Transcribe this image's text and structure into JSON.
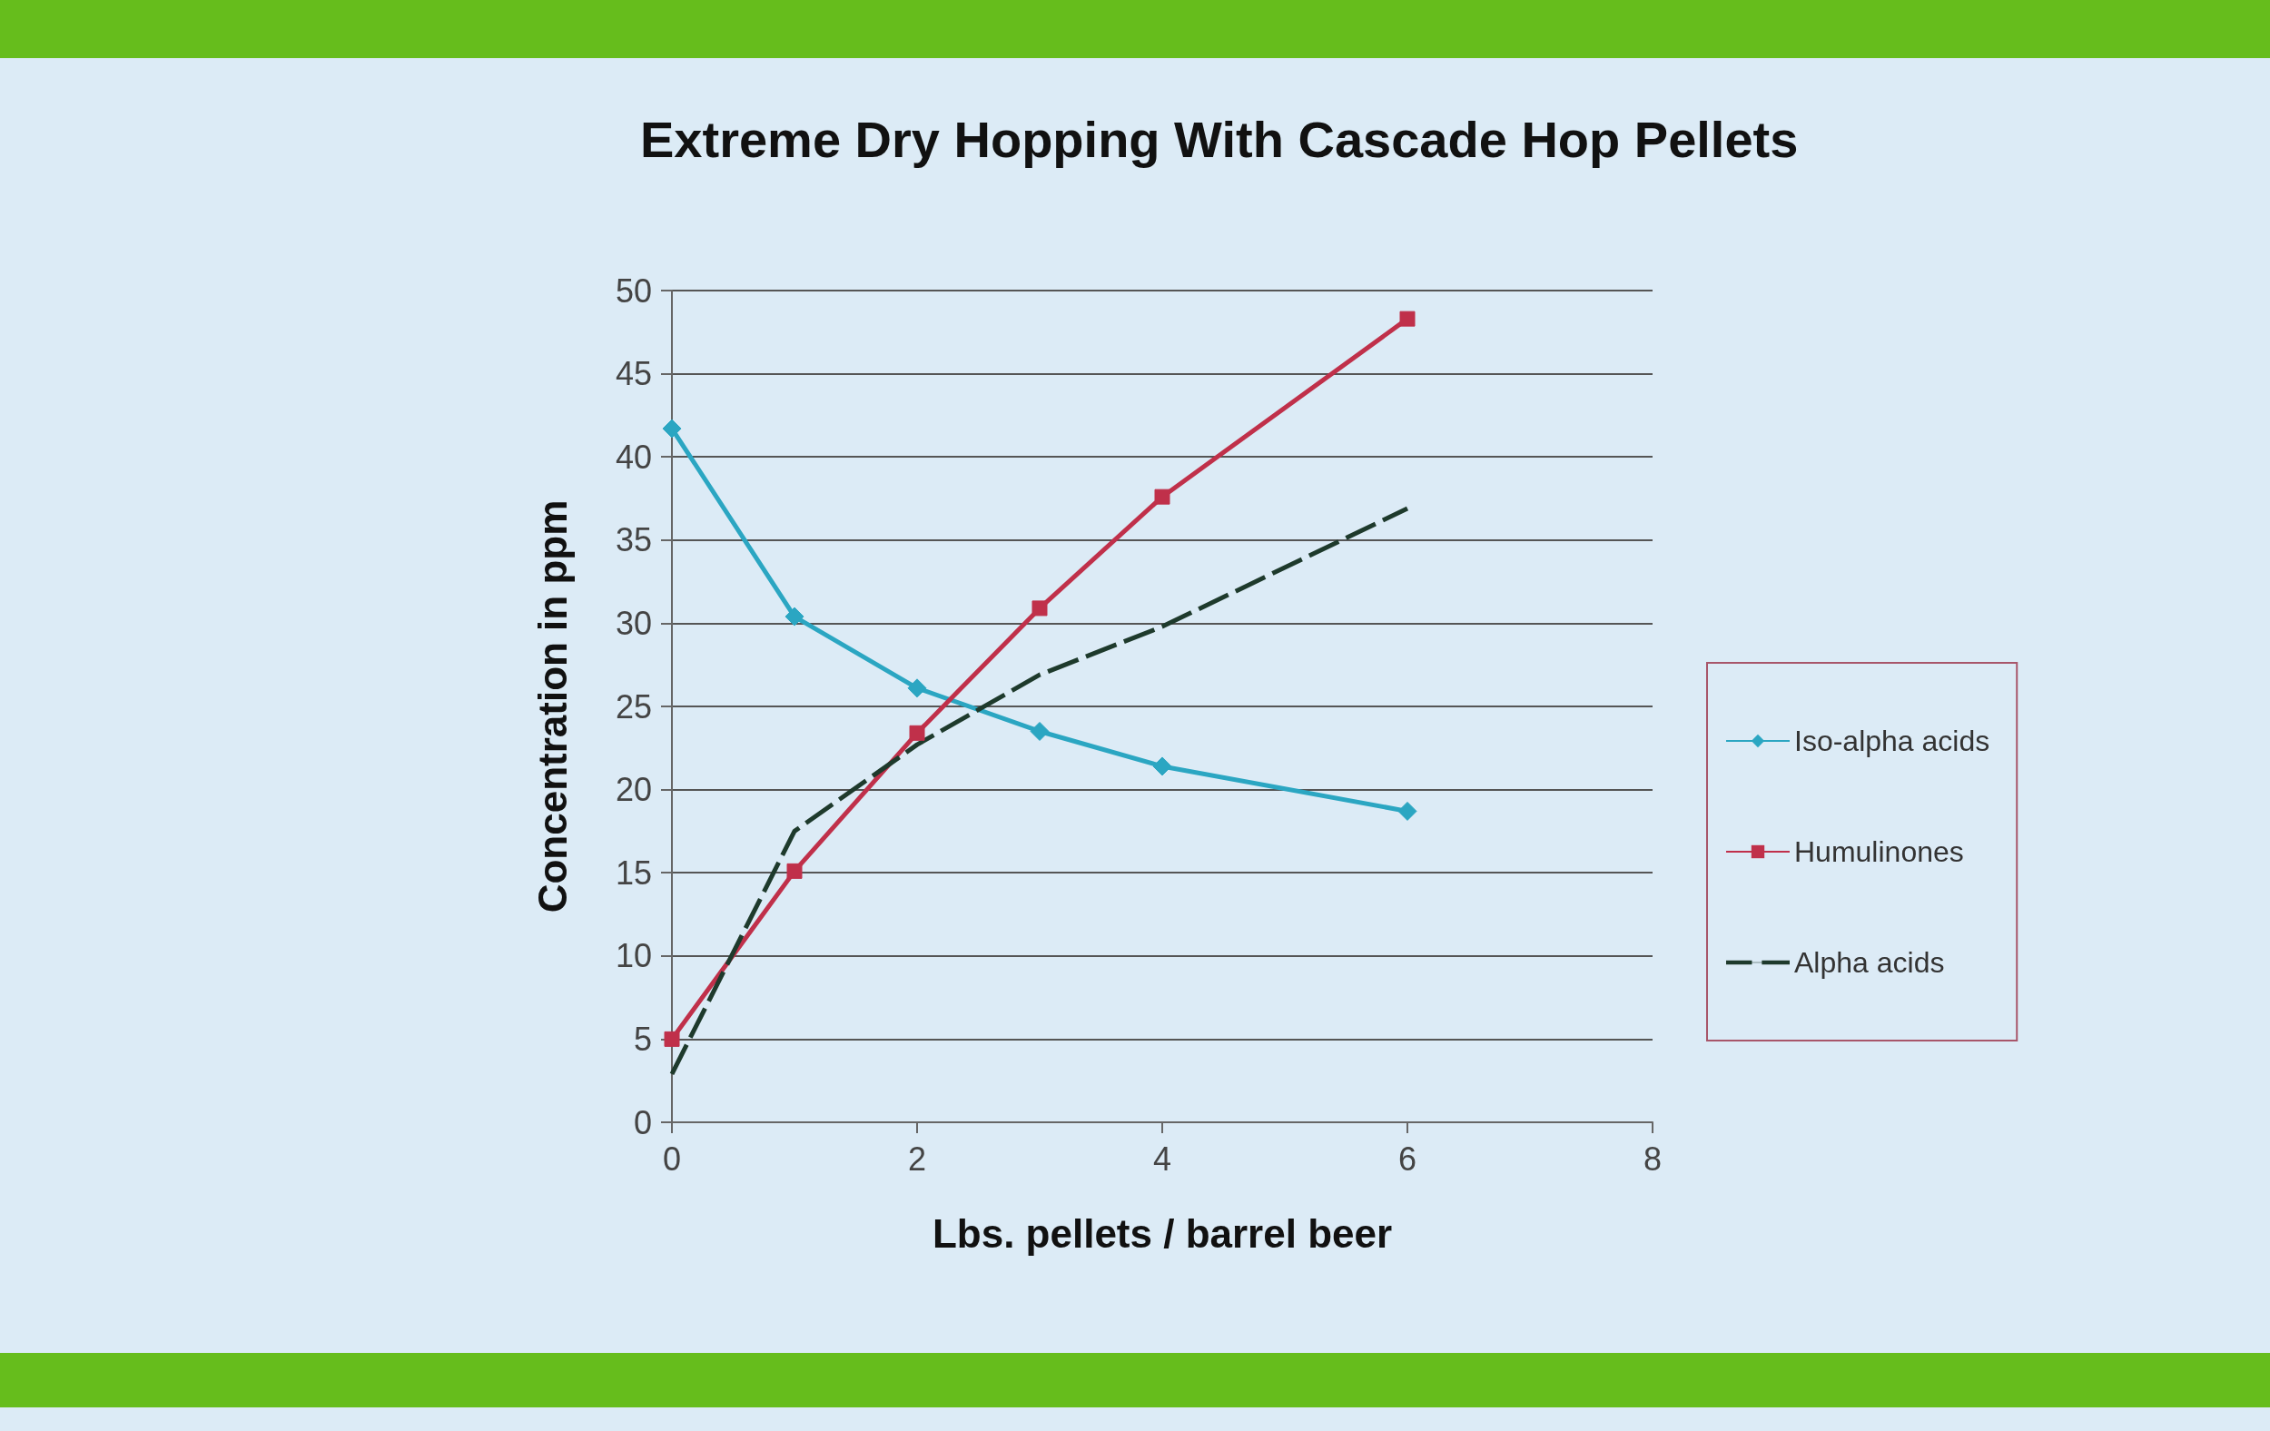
{
  "chart_data": {
    "type": "line",
    "title": "Extreme Dry Hopping With Cascade Hop Pellets",
    "xlabel": "Lbs. pellets / barrel beer",
    "ylabel": "Concentration in ppm",
    "x": [
      0,
      1,
      2,
      3,
      4,
      6
    ],
    "series": [
      {
        "name": "Iso-alpha acids",
        "color": "#2ba6c2",
        "marker": "diamond",
        "values": [
          41.7,
          30.4,
          26.1,
          23.5,
          21.4,
          18.7
        ]
      },
      {
        "name": "Humulinones",
        "color": "#c0304a",
        "marker": "square",
        "values": [
          5.0,
          15.1,
          23.4,
          30.9,
          37.6,
          48.3
        ]
      },
      {
        "name": "Alpha acids",
        "color": "#1e3a2c",
        "marker": "none",
        "line_style": "dashed",
        "values": [
          2.9,
          17.5,
          22.7,
          26.9,
          29.8,
          36.9
        ]
      }
    ],
    "xlim": [
      0,
      8
    ],
    "xticks": [
      0,
      2,
      4,
      6,
      8
    ],
    "ylim": [
      0,
      50
    ],
    "yticks": [
      0,
      5,
      10,
      15,
      20,
      25,
      30,
      35,
      40,
      45,
      50
    ],
    "grid": "y",
    "legend": "right"
  }
}
